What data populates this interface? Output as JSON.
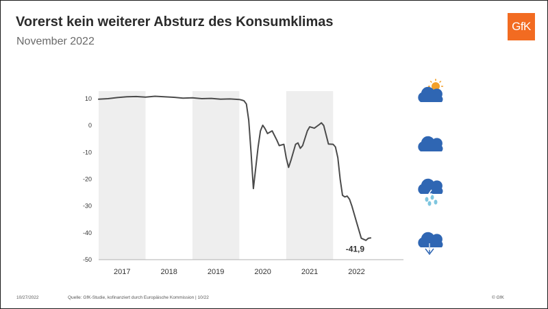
{
  "header": {
    "title": "Vorerst kein weiterer Absturz des Konsumklimas",
    "subtitle": "November 2022",
    "logo_text": "GfK"
  },
  "footer": {
    "date": "10/27/2022",
    "source": "Quelle: GfK-Studie, kofinanziert durch Europäische Kommission | 10/22",
    "copyright": "© GfK"
  },
  "weather_icons": [
    "sun-cloud-icon",
    "cloud-icon",
    "rain-cloud-icon",
    "storm-cloud-icon"
  ],
  "colors": {
    "line": "#4a4a4a",
    "band": "#eeeeee",
    "brand": "#f26b21",
    "cloud": "#2f66b3",
    "sun": "#f3a02a",
    "rain": "#7fc6df"
  },
  "chart_data": {
    "type": "line",
    "title": "Vorerst kein weiterer Absturz des Konsumklimas",
    "subtitle": "November 2022",
    "ylim": [
      -50,
      10
    ],
    "yticks": [
      10,
      0,
      -10,
      -20,
      -30,
      -40,
      -50
    ],
    "xlim": [
      2016.5,
      2023.0
    ],
    "year_labels": [
      "2017",
      "2018",
      "2019",
      "2020",
      "2021",
      "2022"
    ],
    "shaded_years": [
      "2017",
      "2019",
      "2021"
    ],
    "last_value_label": "-41,9",
    "series": [
      {
        "x": [
          2016.5,
          2016.7,
          2016.9,
          2017.1,
          2017.3,
          2017.5,
          2017.7,
          2017.9,
          2018.1,
          2018.3,
          2018.5,
          2018.7,
          2018.9,
          2019.1,
          2019.3,
          2019.5,
          2019.55,
          2019.6,
          2019.65,
          2019.7,
          2019.75,
          2019.8,
          2019.9,
          2019.95,
          2020.0,
          2020.05,
          2020.1,
          2020.2,
          2020.3,
          2020.35,
          2020.45,
          2020.5,
          2020.55,
          2020.6,
          2020.7,
          2020.75,
          2020.8,
          2020.85,
          2020.95,
          2021.0,
          2021.1,
          2021.2,
          2021.25,
          2021.3,
          2021.4,
          2021.5,
          2021.55,
          2021.6,
          2021.65,
          2021.7,
          2021.75,
          2021.8,
          2021.85,
          2021.9,
          2022.0,
          2022.1,
          2022.2,
          2022.25,
          2022.3
        ],
        "y": [
          9.8,
          10.0,
          10.4,
          10.7,
          10.8,
          10.6,
          10.9,
          10.7,
          10.5,
          10.2,
          10.3,
          10.0,
          10.1,
          9.8,
          9.9,
          9.7,
          9.5,
          9.2,
          8.0,
          2.0,
          -10.0,
          -23.5,
          -8.0,
          -2.0,
          0.1,
          -1.2,
          -3.0,
          -2.0,
          -5.5,
          -7.5,
          -7.0,
          -12.0,
          -15.6,
          -13.0,
          -7.0,
          -6.5,
          -8.5,
          -7.5,
          -2.0,
          -0.5,
          -1.0,
          0.3,
          1.0,
          0.0,
          -6.9,
          -7.0,
          -8.0,
          -12.0,
          -20.0,
          -26.0,
          -26.6,
          -26.3,
          -27.5,
          -30.0,
          -36.0,
          -42.0,
          -42.8,
          -42.0,
          -41.9
        ]
      }
    ]
  }
}
